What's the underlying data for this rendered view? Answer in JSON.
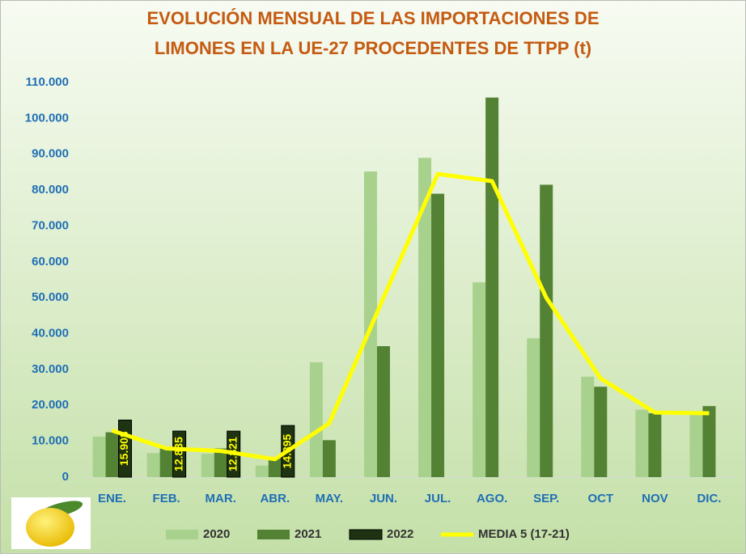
{
  "chart_data": {
    "type": "bar",
    "title": [
      "EVOLUCIÓN MENSUAL DE LAS IMPORTACIONES DE",
      "LIMONES EN LA UE-27 PROCEDENTES DE TTPP (t)"
    ],
    "categories": [
      "ENE.",
      "FEB.",
      "MAR.",
      "ABR.",
      "MAY.",
      "JUN.",
      "JUL.",
      "AGO.",
      "SEP.",
      "OCT",
      "NOV",
      "DIC."
    ],
    "series": [
      {
        "name": "2020",
        "type": "bar",
        "color": "#a9d18e",
        "values": [
          11300,
          6700,
          6500,
          3200,
          32000,
          85200,
          89000,
          54300,
          38700,
          28000,
          18800,
          17500
        ]
      },
      {
        "name": "2021",
        "type": "bar",
        "color": "#548235",
        "values": [
          12500,
          8000,
          8000,
          5500,
          10300,
          36500,
          79000,
          105800,
          81500,
          25200,
          17800,
          19800
        ]
      },
      {
        "name": "2022",
        "type": "bar",
        "color": "#1e3311",
        "values": [
          15908,
          12835,
          12821,
          14395,
          null,
          null,
          null,
          null,
          null,
          null,
          null,
          null
        ],
        "value_labels": [
          "15.908",
          "12.835",
          "12.821",
          "14.395",
          null,
          null,
          null,
          null,
          null,
          null,
          null,
          null
        ]
      },
      {
        "name": "MEDIA 5 (17-21)",
        "type": "line",
        "color": "#ffff00",
        "values": [
          13000,
          8000,
          7300,
          5000,
          15000,
          50000,
          84500,
          82500,
          50000,
          27500,
          18000,
          17800
        ]
      }
    ],
    "ylim": [
      0,
      110000
    ],
    "yticks": [
      0,
      {
        "value": 10000,
        "label": "10.000"
      },
      {
        "value": 20000,
        "label": "20.000"
      },
      {
        "value": 30000,
        "label": "30.000"
      },
      {
        "value": 40000,
        "label": "40.000"
      },
      {
        "value": 50000,
        "label": "50.000"
      },
      {
        "value": 60000,
        "label": "60.000"
      },
      {
        "value": 70000,
        "label": "70.000"
      },
      {
        "value": 80000,
        "label": "80.000"
      },
      {
        "value": 90000,
        "label": "90.000"
      },
      {
        "value": 100000,
        "label": "100.000"
      },
      {
        "value": 110000,
        "label": "110.000"
      }
    ],
    "grid": false,
    "legend": "bottom"
  }
}
